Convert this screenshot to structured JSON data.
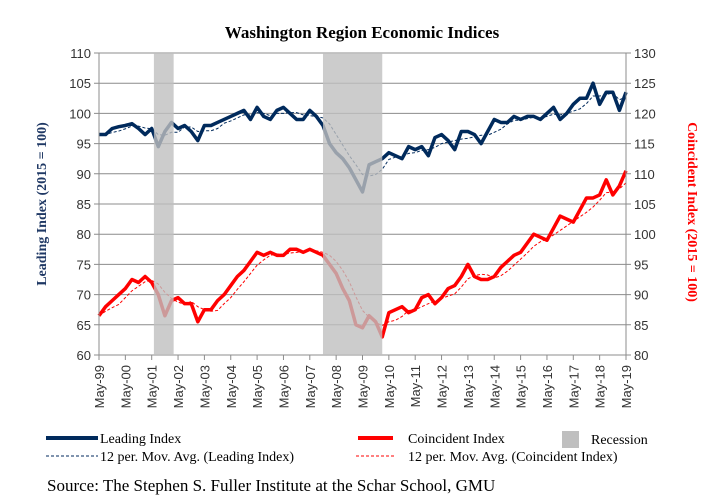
{
  "chart_data": {
    "type": "line",
    "title": "Washington Region Economic Indices",
    "ylabel_left": "Leading Index (2015 = 100)",
    "ylabel_right": "Coincident Index (2015 = 100)",
    "ylim_left": [
      60,
      110
    ],
    "ylim_right": [
      80,
      130
    ],
    "yticks_left": [
      "60",
      "65",
      "70",
      "75",
      "80",
      "85",
      "90",
      "95",
      "100",
      "105",
      "110"
    ],
    "yticks_right": [
      "80",
      "85",
      "90",
      "95",
      "100",
      "105",
      "110",
      "115",
      "120",
      "125",
      "130"
    ],
    "xticks": [
      "May-99",
      "May-00",
      "May-01",
      "May-02",
      "May-03",
      "May-04",
      "May-05",
      "May-06",
      "May-07",
      "May-08",
      "May-09",
      "May-10",
      "May-11",
      "May-12",
      "May-13",
      "May-14",
      "May-15",
      "May-16",
      "May-17",
      "May-18",
      "May-19"
    ],
    "xlim": [
      "1999-05",
      "2019-05"
    ],
    "grid": true,
    "legend_position": "bottom",
    "colors": {
      "leading": "#002a5c",
      "coincident": "#ff0000",
      "recession": "#bfbfbf"
    },
    "recessions": [
      [
        "2001-06",
        "2002-03"
      ],
      [
        "2007-11",
        "2010-02"
      ]
    ],
    "series": [
      {
        "name": "Leading Index",
        "axis": "left",
        "points": [
          [
            "1999-05",
            96.5
          ],
          [
            "1999-08",
            96.5
          ],
          [
            "1999-11",
            97.5
          ],
          [
            "2000-02",
            97.8
          ],
          [
            "2000-05",
            98
          ],
          [
            "2000-08",
            98.3
          ],
          [
            "2000-11",
            97.5
          ],
          [
            "2001-02",
            96.5
          ],
          [
            "2001-05",
            97.5
          ],
          [
            "2001-08",
            94.5
          ],
          [
            "2001-11",
            97
          ],
          [
            "2002-02",
            98.5
          ],
          [
            "2002-05",
            97.5
          ],
          [
            "2002-08",
            98
          ],
          [
            "2002-11",
            97
          ],
          [
            "2003-02",
            95.5
          ],
          [
            "2003-05",
            98
          ],
          [
            "2003-08",
            98
          ],
          [
            "2003-11",
            98.5
          ],
          [
            "2004-02",
            99
          ],
          [
            "2004-05",
            99.5
          ],
          [
            "2004-08",
            100
          ],
          [
            "2004-11",
            100.5
          ],
          [
            "2005-02",
            99
          ],
          [
            "2005-05",
            101
          ],
          [
            "2005-08",
            99.5
          ],
          [
            "2005-11",
            99
          ],
          [
            "2006-02",
            100.5
          ],
          [
            "2006-05",
            101
          ],
          [
            "2006-08",
            100
          ],
          [
            "2006-11",
            99
          ],
          [
            "2007-02",
            99
          ],
          [
            "2007-05",
            100.5
          ],
          [
            "2007-08",
            99.5
          ],
          [
            "2007-11",
            98
          ],
          [
            "2008-02",
            95
          ],
          [
            "2008-05",
            93.5
          ],
          [
            "2008-08",
            92.5
          ],
          [
            "2008-11",
            91
          ],
          [
            "2009-02",
            89
          ],
          [
            "2009-05",
            87
          ],
          [
            "2009-08",
            91.5
          ],
          [
            "2009-11",
            92
          ],
          [
            "2010-02",
            92.5
          ],
          [
            "2010-05",
            93.5
          ],
          [
            "2010-08",
            93
          ],
          [
            "2010-11",
            92.5
          ],
          [
            "2011-02",
            94.5
          ],
          [
            "2011-05",
            94
          ],
          [
            "2011-08",
            94.5
          ],
          [
            "2011-11",
            93
          ],
          [
            "2012-02",
            96
          ],
          [
            "2012-05",
            96.5
          ],
          [
            "2012-08",
            95.5
          ],
          [
            "2012-11",
            94
          ],
          [
            "2013-02",
            97
          ],
          [
            "2013-05",
            97
          ],
          [
            "2013-08",
            96.5
          ],
          [
            "2013-11",
            95
          ],
          [
            "2014-02",
            97
          ],
          [
            "2014-05",
            99
          ],
          [
            "2014-08",
            98.5
          ],
          [
            "2014-11",
            98.5
          ],
          [
            "2015-02",
            99.5
          ],
          [
            "2015-05",
            99
          ],
          [
            "2015-08",
            99.5
          ],
          [
            "2015-11",
            99.5
          ],
          [
            "2016-02",
            99
          ],
          [
            "2016-05",
            100
          ],
          [
            "2016-08",
            101
          ],
          [
            "2016-11",
            99
          ],
          [
            "2017-02",
            100
          ],
          [
            "2017-05",
            101.5
          ],
          [
            "2017-08",
            102.5
          ],
          [
            "2017-11",
            102.5
          ],
          [
            "2018-02",
            105
          ],
          [
            "2018-05",
            101.5
          ],
          [
            "2018-08",
            103.5
          ],
          [
            "2018-11",
            103.5
          ],
          [
            "2019-02",
            100.5
          ],
          [
            "2019-05",
            103.5
          ]
        ]
      },
      {
        "name": "Coincident Index",
        "axis": "right",
        "points": [
          [
            "1999-05",
            86.5
          ],
          [
            "1999-08",
            88
          ],
          [
            "1999-11",
            89
          ],
          [
            "2000-02",
            90
          ],
          [
            "2000-05",
            91
          ],
          [
            "2000-08",
            92.5
          ],
          [
            "2000-11",
            92
          ],
          [
            "2001-02",
            93
          ],
          [
            "2001-05",
            92
          ],
          [
            "2001-08",
            90
          ],
          [
            "2001-11",
            86.5
          ],
          [
            "2002-02",
            89
          ],
          [
            "2002-05",
            89.5
          ],
          [
            "2002-08",
            88.5
          ],
          [
            "2002-11",
            88.5
          ],
          [
            "2003-02",
            85.5
          ],
          [
            "2003-05",
            87.5
          ],
          [
            "2003-08",
            87.5
          ],
          [
            "2003-11",
            89
          ],
          [
            "2004-02",
            90
          ],
          [
            "2004-05",
            91.5
          ],
          [
            "2004-08",
            93
          ],
          [
            "2004-11",
            94
          ],
          [
            "2005-02",
            95.5
          ],
          [
            "2005-05",
            97
          ],
          [
            "2005-08",
            96.5
          ],
          [
            "2005-11",
            97
          ],
          [
            "2006-02",
            96.5
          ],
          [
            "2006-05",
            96.5
          ],
          [
            "2006-08",
            97.5
          ],
          [
            "2006-11",
            97.5
          ],
          [
            "2007-02",
            97
          ],
          [
            "2007-05",
            97.5
          ],
          [
            "2007-08",
            97
          ],
          [
            "2007-11",
            96.5
          ],
          [
            "2008-02",
            95
          ],
          [
            "2008-05",
            93.5
          ],
          [
            "2008-08",
            91
          ],
          [
            "2008-11",
            89
          ],
          [
            "2009-02",
            85
          ],
          [
            "2009-05",
            84.5
          ],
          [
            "2009-08",
            86.5
          ],
          [
            "2009-11",
            85.5
          ],
          [
            "2010-02",
            83
          ],
          [
            "2010-05",
            87
          ],
          [
            "2010-08",
            87.5
          ],
          [
            "2010-11",
            88
          ],
          [
            "2011-02",
            87
          ],
          [
            "2011-05",
            87.5
          ],
          [
            "2011-08",
            89.5
          ],
          [
            "2011-11",
            90
          ],
          [
            "2012-02",
            88.5
          ],
          [
            "2012-05",
            89.5
          ],
          [
            "2012-08",
            91
          ],
          [
            "2012-11",
            91.5
          ],
          [
            "2013-02",
            93
          ],
          [
            "2013-05",
            95
          ],
          [
            "2013-08",
            93
          ],
          [
            "2013-11",
            92.5
          ],
          [
            "2014-02",
            92.5
          ],
          [
            "2014-05",
            93
          ],
          [
            "2014-08",
            94.5
          ],
          [
            "2014-11",
            95.5
          ],
          [
            "2015-02",
            96.5
          ],
          [
            "2015-05",
            97
          ],
          [
            "2015-08",
            98.5
          ],
          [
            "2015-11",
            100
          ],
          [
            "2016-02",
            99.5
          ],
          [
            "2016-05",
            99
          ],
          [
            "2016-08",
            101
          ],
          [
            "2016-11",
            103
          ],
          [
            "2017-02",
            102.5
          ],
          [
            "2017-05",
            102
          ],
          [
            "2017-08",
            104
          ],
          [
            "2017-11",
            106
          ],
          [
            "2018-02",
            106
          ],
          [
            "2018-05",
            106.5
          ],
          [
            "2018-08",
            109
          ],
          [
            "2018-11",
            106.5
          ],
          [
            "2019-02",
            108
          ],
          [
            "2019-05",
            110.5
          ]
        ]
      }
    ],
    "legend": {
      "leading": "Leading Index",
      "leading_ma": "12 per. Mov. Avg. (Leading Index)",
      "coincident": "Coincident Index",
      "coincident_ma": "12 per. Mov. Avg. (Coincident Index)",
      "recession": "Recession"
    },
    "source": "Source: The Stephen S. Fuller Institute at the Schar School, GMU"
  }
}
